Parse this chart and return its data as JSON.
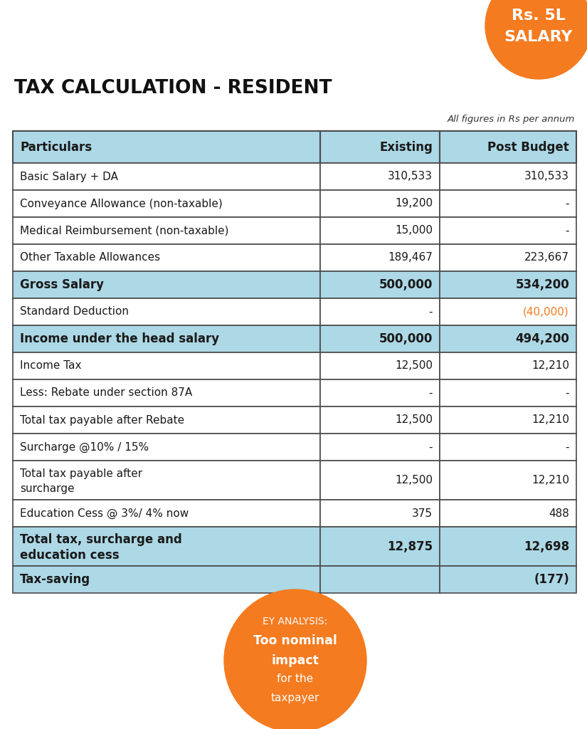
{
  "title": "TAX CALCULATION - RESIDENT",
  "subtitle": "All figures in Rs per annum",
  "badge_line1": "Rs. 5L",
  "badge_line2": "SALARY",
  "badge_color": "#F47B20",
  "header_row": [
    "Particulars",
    "Existing",
    "Post Budget"
  ],
  "rows": [
    {
      "label": "Basic Salary + DA",
      "existing": "310,533",
      "post": "310,533",
      "bold": false,
      "highlight": false
    },
    {
      "label": "Conveyance Allowance (non-taxable)",
      "existing": "19,200",
      "post": "-",
      "bold": false,
      "highlight": false
    },
    {
      "label": "Medical Reimbursement (non-taxable)",
      "existing": "15,000",
      "post": "-",
      "bold": false,
      "highlight": false
    },
    {
      "label": "Other Taxable Allowances",
      "existing": "189,467",
      "post": "223,667",
      "bold": false,
      "highlight": false
    },
    {
      "label": "Gross Salary",
      "existing": "500,000",
      "post": "534,200",
      "bold": true,
      "highlight": true
    },
    {
      "label": "Standard Deduction",
      "existing": "-",
      "post": "(40,000)",
      "bold": false,
      "highlight": false,
      "post_orange": true
    },
    {
      "label": "Income under the head salary",
      "existing": "500,000",
      "post": "494,200",
      "bold": true,
      "highlight": true
    },
    {
      "label": "Income Tax",
      "existing": "12,500",
      "post": "12,210",
      "bold": false,
      "highlight": false
    },
    {
      "label": "Less: Rebate under section 87A",
      "existing": "-",
      "post": "-",
      "bold": false,
      "highlight": false
    },
    {
      "label": "Total tax payable after Rebate",
      "existing": "12,500",
      "post": "12,210",
      "bold": false,
      "highlight": false
    },
    {
      "label": "Surcharge @10% / 15%",
      "existing": "-",
      "post": "-",
      "bold": false,
      "highlight": false
    },
    {
      "label": "Total tax payable after\nsurcharge",
      "existing": "12,500",
      "post": "12,210",
      "bold": false,
      "highlight": false
    },
    {
      "label": "Education Cess @ 3%/ 4% now",
      "existing": "375",
      "post": "488",
      "bold": false,
      "highlight": false
    },
    {
      "label": "Total tax, surcharge and\neducation cess",
      "existing": "12,875",
      "post": "12,698",
      "bold": true,
      "highlight": true
    },
    {
      "label": "Tax-saving",
      "existing": "",
      "post": "(177)",
      "bold": true,
      "highlight": true
    }
  ],
  "highlight_color": "#ADD8E6",
  "header_color": "#ADD8E6",
  "border_color": "#4a4a4a",
  "white_color": "#FFFFFF",
  "orange_color": "#F47B20",
  "text_color": "#1a1a1a",
  "ey_analysis_line1": "EY ANALYSIS:",
  "ey_analysis_line2": "Too nominal",
  "ey_analysis_line3": "impact",
  "ey_analysis_line4": "for the",
  "ey_analysis_line5": "taxpayer"
}
